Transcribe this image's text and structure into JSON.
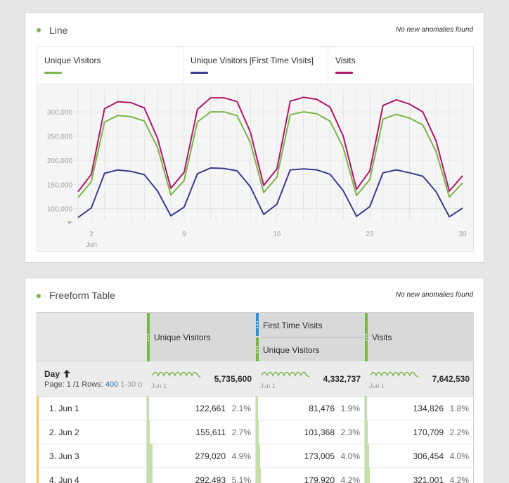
{
  "line_panel": {
    "title": "Line",
    "anomaly_text": "No new anomalies found",
    "legend": [
      {
        "label": "Unique Visitors",
        "color": "#7ab648"
      },
      {
        "label": "Unique Visitors [First Time Visits]",
        "color": "#3b3b8f"
      },
      {
        "label": "Visits",
        "color": "#b0166a"
      }
    ]
  },
  "chart_data": {
    "type": "line",
    "title": "Line",
    "y_ticks": [
      "300,000",
      "250,000",
      "200,000",
      "150,000",
      "100,000"
    ],
    "y_tick_values": [
      300000,
      250000,
      200000,
      150000,
      100000
    ],
    "x_ticks": [
      "2",
      "9",
      "16",
      "23",
      "30"
    ],
    "x_tick_days": [
      2,
      9,
      16,
      23,
      30
    ],
    "x_sublabel": "Jun",
    "ylim": [
      85000,
      335000
    ],
    "x": [
      1,
      2,
      3,
      4,
      5,
      6,
      7,
      8,
      9,
      10,
      11,
      12,
      13,
      14,
      15,
      16,
      17,
      18,
      19,
      20,
      21,
      22,
      23,
      24,
      25,
      26,
      27,
      28,
      29,
      30
    ],
    "series": [
      {
        "name": "Visits",
        "color": "#b0166a",
        "values": [
          134826,
          170709,
          306454,
          321001,
          319000,
          308000,
          245000,
          142000,
          175000,
          305000,
          329000,
          329000,
          321000,
          258000,
          148000,
          182000,
          322000,
          330000,
          326000,
          310000,
          250000,
          140000,
          178000,
          313000,
          325000,
          316000,
          300000,
          240000,
          136000,
          168000
        ]
      },
      {
        "name": "Unique Visitors",
        "color": "#7ab648",
        "values": [
          122661,
          155611,
          279020,
          292493,
          290000,
          281000,
          226000,
          128000,
          158000,
          279000,
          300000,
          300000,
          292000,
          236000,
          133000,
          165000,
          294000,
          300000,
          296000,
          281000,
          226000,
          127000,
          160000,
          285000,
          295000,
          287000,
          273000,
          218000,
          124000,
          153000
        ]
      },
      {
        "name": "Unique Visitors [First Time Visits]",
        "color": "#3b3b8f",
        "values": [
          81476,
          101368,
          173005,
          179920,
          177000,
          170000,
          136000,
          85000,
          103000,
          172000,
          184000,
          183000,
          178000,
          145000,
          88000,
          109000,
          180000,
          182000,
          180000,
          171000,
          137000,
          84000,
          104000,
          174000,
          180000,
          174000,
          167000,
          135000,
          83000,
          101000
        ]
      }
    ]
  },
  "table_panel": {
    "title": "Freeform Table",
    "anomaly_text": "No new anomalies found",
    "columns": {
      "col1": "Unique Visitors",
      "col2_segment": "First Time Visits",
      "col2": "Unique Visitors",
      "col3": "Visits"
    },
    "dimension": {
      "label": "Day",
      "sort_icon": "arrow-up-icon",
      "page_prefix": "Page: 1 /1",
      "rows_prefix": "Rows:",
      "rows_value": "400",
      "range_text": "1-30 o"
    },
    "totals": {
      "unique_visitors": "5,735,600",
      "first_time_unique": "4,332,737",
      "visits": "7,642,530",
      "spark_label": "Jun 1"
    },
    "rows": [
      {
        "label": "1. Jun 1",
        "uv": "122,661",
        "uv_pct": "2.1%",
        "uv_frac": 0.021,
        "ft": "81,476",
        "ft_pct": "1.9%",
        "ft_frac": 0.019,
        "v": "134,826",
        "v_pct": "1.8%",
        "v_frac": 0.018
      },
      {
        "label": "2. Jun 2",
        "uv": "155,611",
        "uv_pct": "2.7%",
        "uv_frac": 0.027,
        "ft": "101,368",
        "ft_pct": "2.3%",
        "ft_frac": 0.023,
        "v": "170,709",
        "v_pct": "2.2%",
        "v_frac": 0.022
      },
      {
        "label": "3. Jun 3",
        "uv": "279,020",
        "uv_pct": "4.9%",
        "uv_frac": 0.049,
        "ft": "173,005",
        "ft_pct": "4.0%",
        "ft_frac": 0.04,
        "v": "306,454",
        "v_pct": "4.0%",
        "v_frac": 0.04
      },
      {
        "label": "4. Jun 4",
        "uv": "292,493",
        "uv_pct": "5.1%",
        "uv_frac": 0.051,
        "ft": "179,920",
        "ft_pct": "4.2%",
        "ft_frac": 0.042,
        "v": "321,001",
        "v_pct": "4.2%",
        "v_frac": 0.042
      }
    ]
  }
}
